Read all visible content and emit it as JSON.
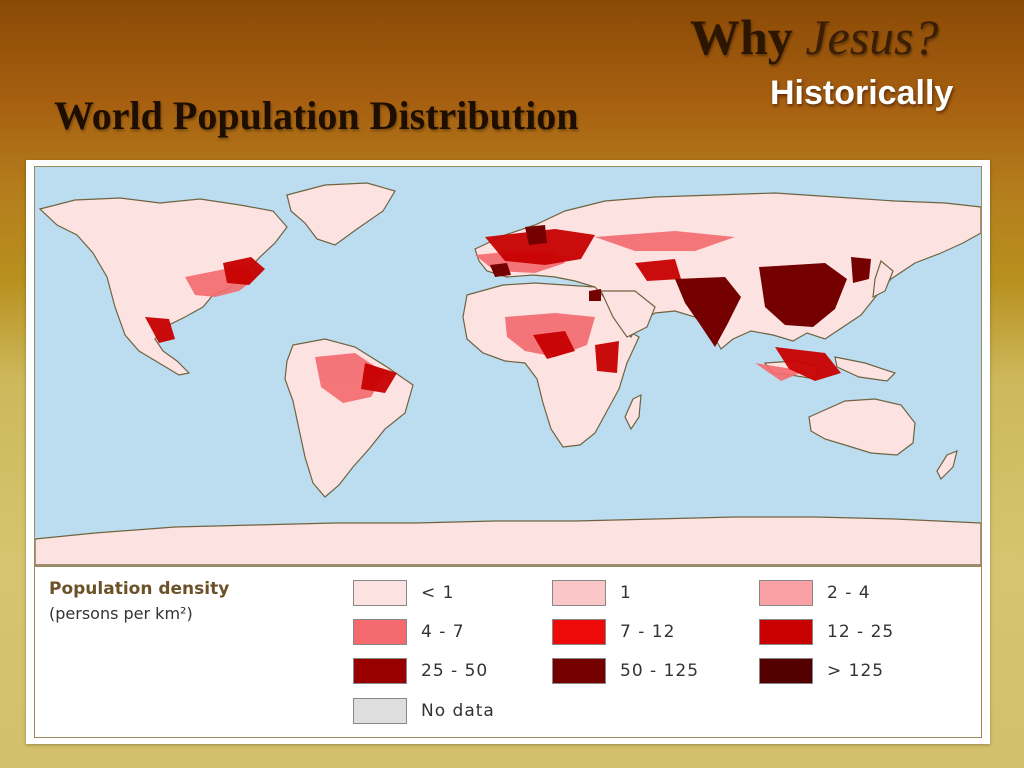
{
  "header": {
    "brand_why": "Why",
    "brand_jesus": "Jesus?",
    "brand_subtitle": "Historically",
    "title": "World Population Distribution"
  },
  "map": {
    "ocean_color": "#bcdcf0",
    "land_low_color": "#fde2e2",
    "coast_color": "#6e6440"
  },
  "legend": {
    "title": "Population density",
    "unit": "(persons per km²)",
    "items": [
      {
        "label": "< 1",
        "color": "#fde2e2"
      },
      {
        "label": "1",
        "color": "#fbc6c8"
      },
      {
        "label": "2 - 4",
        "color": "#f9a1a4"
      },
      {
        "label": "4 - 7",
        "color": "#f46a6e"
      },
      {
        "label": "7 - 12",
        "color": "#ef0a0a"
      },
      {
        "label": "12 - 25",
        "color": "#c80000"
      },
      {
        "label": "25 - 50",
        "color": "#980000"
      },
      {
        "label": "50 - 125",
        "color": "#740000"
      },
      {
        "label": "> 125",
        "color": "#520000"
      },
      {
        "label": "No data",
        "color": "#dedede"
      }
    ]
  }
}
